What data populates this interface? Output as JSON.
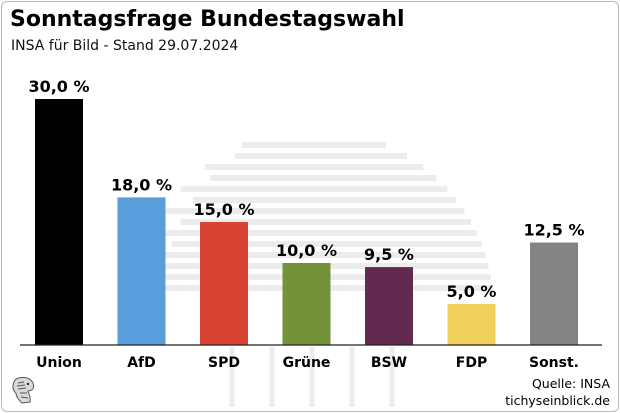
{
  "chart_data": {
    "type": "bar",
    "title": "Sonntagsfrage Bundestagswahl",
    "subtitle": "INSA für Bild - Stand 29.07.2024",
    "categories": [
      "Union",
      "AfD",
      "SPD",
      "Grüne",
      "BSW",
      "FDP",
      "Sonst."
    ],
    "values": [
      30.0,
      18.0,
      15.0,
      10.0,
      9.5,
      5.0,
      12.5
    ],
    "value_labels": [
      "30,0 %",
      "18,0 %",
      "15,0 %",
      "10,0 %",
      "9,5 %",
      "5,0 %",
      "12,5 %"
    ],
    "colors": [
      "#000000",
      "#5a9ddc",
      "#d84334",
      "#73923a",
      "#632a4f",
      "#f0cf5a",
      "#848484"
    ],
    "xlabel": "",
    "ylabel": "",
    "ylim": [
      0,
      30
    ],
    "grid": false,
    "legend": "none"
  },
  "source": {
    "line1": "Quelle: INSA",
    "line2": "tichyseinblick.de"
  },
  "logo_icon": "eagle-head-logo-icon",
  "watermark_icon": "bundestag-dome-icon"
}
